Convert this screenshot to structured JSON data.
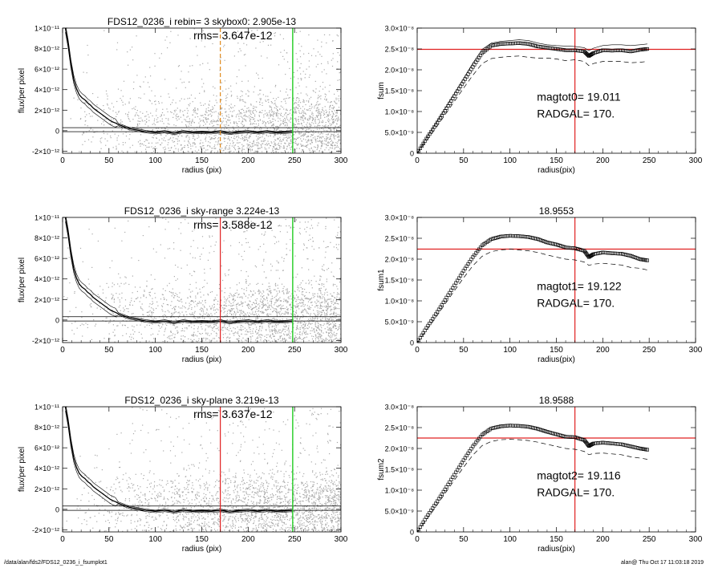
{
  "footer": {
    "path": "/data/alan/fds2/FDS12_0236_i_fsumplot1",
    "stamp": "alan@  Thu Oct 17 11:03:18 2019"
  },
  "colors": {
    "axes": "#000000",
    "scatter": "#a9a9a9",
    "red": "#e02020",
    "green": "#22cc22",
    "orange": "#e08a1e",
    "profile_dark": "#882222"
  },
  "chart_data": [
    {
      "id": "flux-1",
      "type": "scatter",
      "title": "FDS12_0236_i rebin= 3    skybox0:  2.905e-13",
      "rms_text": "rms= 3.647e-12",
      "xlabel": "radius (pix)",
      "ylabel": "flux/per pixel",
      "xlim": [
        0,
        300
      ],
      "ylim": [
        -2.2e-12,
        1e-11
      ],
      "xticks": [
        0,
        50,
        100,
        150,
        200,
        250,
        300
      ],
      "yticks": [
        -2e-12,
        0,
        2e-12,
        4e-12,
        6e-12,
        8e-12,
        1e-11
      ],
      "ytick_labels": [
        "-2×10⁻¹²",
        "0",
        "2×10⁻¹²",
        "4×10⁻¹²",
        "6×10⁻¹²",
        "8×10⁻¹²",
        "1×10⁻¹¹"
      ],
      "vline_x": 170,
      "vline_color": "#e08a1e",
      "vline_dashed": true,
      "green_x": 248,
      "hlines": [
        2.9e-13,
        -1e-13
      ],
      "profile": {
        "x": [
          3,
          6,
          9,
          12,
          15,
          18,
          21,
          24,
          27,
          30,
          33,
          36,
          39,
          42,
          45,
          48,
          51,
          54,
          57,
          60,
          63,
          66,
          69,
          72,
          75,
          78,
          81,
          84,
          90,
          100,
          110,
          120,
          130,
          140,
          150,
          160,
          170,
          180,
          190,
          200,
          210,
          220,
          230,
          240,
          248
        ],
        "y": [
          1e-11,
          8.5e-12,
          6.5e-12,
          5e-12,
          4.1e-12,
          3.5e-12,
          3.2e-12,
          3e-12,
          2.7e-12,
          2.5e-12,
          2.2e-12,
          2e-12,
          1.8e-12,
          1.6e-12,
          1.4e-12,
          1.2e-12,
          1e-12,
          8.5e-13,
          7.5e-13,
          6e-13,
          5e-13,
          4e-13,
          3e-13,
          2e-13,
          1.5e-13,
          1e-13,
          5e-14,
          0,
          -1e-13,
          -2e-13,
          -1e-13,
          -2.5e-13,
          -1e-13,
          -2e-13,
          -1.5e-13,
          -2e-13,
          -1e-13,
          -2.5e-13,
          -1.5e-13,
          -1e-13,
          -2e-13,
          -1e-13,
          -2e-13,
          -1.5e-13,
          -1e-13
        ]
      }
    },
    {
      "id": "fsum-0",
      "type": "scatter",
      "title": "",
      "xlabel": "radius(pix)",
      "ylabel": "fsum",
      "xlim": [
        0,
        300
      ],
      "ylim": [
        0,
        3e-08
      ],
      "xticks": [
        0,
        50,
        100,
        150,
        200,
        250,
        300
      ],
      "yticks": [
        0,
        5e-09,
        1e-08,
        1.5e-08,
        2e-08,
        2.5e-08,
        3e-08
      ],
      "ytick_labels": [
        "0",
        "5.0×10⁻⁹",
        "1.0×10⁻⁸",
        "1.5×10⁻⁸",
        "2.0×10⁻⁸",
        "2.5×10⁻⁸",
        "3.0×10⁻⁸"
      ],
      "hline_y": 2.49e-08,
      "vline_x": 170,
      "annot": [
        "magtot0=  19.011",
        "RADGAL=    170."
      ],
      "x": [
        0,
        10,
        20,
        30,
        40,
        50,
        60,
        70,
        80,
        90,
        100,
        110,
        120,
        130,
        140,
        150,
        160,
        170,
        180,
        185,
        190,
        200,
        210,
        220,
        230,
        240,
        248
      ],
      "y": [
        0,
        3.5e-09,
        6.8e-09,
        1.02e-08,
        1.37e-08,
        1.72e-08,
        2.07e-08,
        2.4e-08,
        2.58e-08,
        2.62e-08,
        2.63e-08,
        2.64e-08,
        2.62e-08,
        2.56e-08,
        2.53e-08,
        2.5e-08,
        2.47e-08,
        2.47e-08,
        2.44e-08,
        2.33e-08,
        2.4e-08,
        2.47e-08,
        2.46e-08,
        2.47e-08,
        2.44e-08,
        2.48e-08,
        2.5e-08
      ],
      "dashed": [
        0,
        3e-09,
        6e-09,
        9.2e-09,
        1.24e-08,
        1.56e-08,
        1.87e-08,
        2.15e-08,
        2.27e-08,
        2.3e-08,
        2.32e-08,
        2.33e-08,
        2.3e-08,
        2.28e-08,
        2.28e-08,
        2.26e-08,
        2.22e-08,
        2.24e-08,
        2.2e-08,
        2.1e-08,
        2.15e-08,
        2.2e-08,
        2.2e-08,
        2.2e-08,
        2.17e-08,
        2.18e-08,
        2.2e-08
      ],
      "upper": [
        0,
        3.7e-09,
        7.1e-09,
        1.07e-08,
        1.43e-08,
        1.79e-08,
        2.16e-08,
        2.49e-08,
        2.64e-08,
        2.68e-08,
        2.7e-08,
        2.72e-08,
        2.7e-08,
        2.64e-08,
        2.6e-08,
        2.58e-08,
        2.57e-08,
        2.56e-08,
        2.53e-08,
        2.46e-08,
        2.52e-08,
        2.58e-08,
        2.6e-08,
        2.6e-08,
        2.58e-08,
        2.6e-08,
        2.62e-08
      ]
    },
    {
      "id": "flux-2",
      "type": "scatter",
      "title": "FDS12_0236_i sky-range  3.224e-13",
      "rms_text": "rms= 3.588e-12",
      "xlabel": "radius (pix)",
      "ylabel": "flux/per pixel",
      "xlim": [
        0,
        300
      ],
      "ylim": [
        -2.2e-12,
        1e-11
      ],
      "xticks": [
        0,
        50,
        100,
        150,
        200,
        250,
        300
      ],
      "yticks": [
        -2e-12,
        0,
        2e-12,
        4e-12,
        6e-12,
        8e-12,
        1e-11
      ],
      "ytick_labels": [
        "-2×10⁻¹²",
        "0",
        "2×10⁻¹²",
        "4×10⁻¹²",
        "6×10⁻¹²",
        "8×10⁻¹²",
        "1×10⁻¹¹"
      ],
      "vline_x": 170,
      "vline_color": "#e02020",
      "vline_dashed": false,
      "green_x": 248,
      "hlines": [
        3.2e-13,
        -1e-13
      ],
      "profile": {
        "x": [
          3,
          6,
          9,
          12,
          15,
          18,
          21,
          24,
          27,
          30,
          33,
          36,
          39,
          42,
          45,
          48,
          51,
          54,
          57,
          60,
          63,
          66,
          69,
          72,
          75,
          78,
          81,
          84,
          90,
          100,
          110,
          120,
          130,
          140,
          150,
          160,
          170,
          180,
          190,
          200,
          210,
          220,
          230,
          240,
          248
        ],
        "y": [
          1e-11,
          8.5e-12,
          6.5e-12,
          5e-12,
          4.1e-12,
          3.5e-12,
          3.2e-12,
          3e-12,
          2.7e-12,
          2.5e-12,
          2.2e-12,
          2e-12,
          1.8e-12,
          1.6e-12,
          1.4e-12,
          1.2e-12,
          1e-12,
          8.5e-13,
          7.5e-13,
          6e-13,
          5e-13,
          4e-13,
          3e-13,
          2e-13,
          1.5e-13,
          1e-13,
          5e-14,
          0,
          -1e-13,
          -2e-13,
          -1e-13,
          -2.5e-13,
          -1e-13,
          -2e-13,
          -1.5e-13,
          -2e-13,
          -1e-13,
          -2.5e-13,
          -1.5e-13,
          -1e-13,
          -2e-13,
          -1e-13,
          -2e-13,
          -1.5e-13,
          -1e-13
        ]
      }
    },
    {
      "id": "fsum-1",
      "type": "scatter",
      "title": "18.9553",
      "xlabel": "radius(pix)",
      "ylabel": "fsum1",
      "xlim": [
        0,
        300
      ],
      "ylim": [
        0,
        3e-08
      ],
      "xticks": [
        0,
        50,
        100,
        150,
        200,
        250,
        300
      ],
      "yticks": [
        0,
        5e-09,
        1e-08,
        1.5e-08,
        2e-08,
        2.5e-08,
        3e-08
      ],
      "ytick_labels": [
        "0",
        "5.0×10⁻⁹",
        "1.0×10⁻⁸",
        "1.5×10⁻⁸",
        "2.0×10⁻⁸",
        "2.5×10⁻⁸",
        "3.0×10⁻⁸"
      ],
      "hline_y": 2.24e-08,
      "vline_x": 170,
      "annot": [
        "magtot1=  19.122",
        "RADGAL=    170."
      ],
      "x": [
        0,
        10,
        20,
        30,
        40,
        50,
        60,
        70,
        80,
        90,
        100,
        110,
        120,
        130,
        140,
        150,
        160,
        170,
        180,
        185,
        190,
        200,
        210,
        220,
        230,
        240,
        248
      ],
      "y": [
        0,
        3.5e-09,
        6.8e-09,
        1.02e-08,
        1.37e-08,
        1.72e-08,
        2.05e-08,
        2.33e-08,
        2.48e-08,
        2.54e-08,
        2.56e-08,
        2.55e-08,
        2.53e-08,
        2.48e-08,
        2.4e-08,
        2.35e-08,
        2.28e-08,
        2.26e-08,
        2.2e-08,
        2.05e-08,
        2.12e-08,
        2.16e-08,
        2.14e-08,
        2.13e-08,
        2.08e-08,
        2e-08,
        1.97e-08
      ],
      "dashed": [
        0,
        3e-09,
        6e-09,
        9.2e-09,
        1.24e-08,
        1.55e-08,
        1.84e-08,
        2.07e-08,
        2.18e-08,
        2.22e-08,
        2.24e-08,
        2.22e-08,
        2.2e-08,
        2.16e-08,
        2.1e-08,
        2.05e-08,
        2e-08,
        1.98e-08,
        1.93e-08,
        1.85e-08,
        1.88e-08,
        1.9e-08,
        1.88e-08,
        1.86e-08,
        1.8e-08,
        1.78e-08,
        1.74e-08
      ],
      "upper": []
    },
    {
      "id": "flux-3",
      "type": "scatter",
      "title": "FDS12_0236_i sky-plane  3.219e-13",
      "rms_text": "rms= 3.637e-12",
      "xlabel": "radius (pix)",
      "ylabel": "flux/per pixel",
      "xlim": [
        0,
        300
      ],
      "ylim": [
        -2.2e-12,
        1e-11
      ],
      "xticks": [
        0,
        50,
        100,
        150,
        200,
        250,
        300
      ],
      "yticks": [
        -2e-12,
        0,
        2e-12,
        4e-12,
        6e-12,
        8e-12,
        1e-11
      ],
      "ytick_labels": [
        "-2×10⁻¹²",
        "0",
        "2×10⁻¹²",
        "4×10⁻¹²",
        "6×10⁻¹²",
        "8×10⁻¹²",
        "1×10⁻¹¹"
      ],
      "vline_x": 170,
      "vline_color": "#e02020",
      "vline_dashed": false,
      "green_x": 248,
      "hlines": [
        3.2e-13,
        -1e-13
      ],
      "profile": {
        "x": [
          3,
          6,
          9,
          12,
          15,
          18,
          21,
          24,
          27,
          30,
          33,
          36,
          39,
          42,
          45,
          48,
          51,
          54,
          57,
          60,
          63,
          66,
          69,
          72,
          75,
          78,
          81,
          84,
          90,
          100,
          110,
          120,
          130,
          140,
          150,
          160,
          170,
          180,
          190,
          200,
          210,
          220,
          230,
          240,
          248
        ],
        "y": [
          1e-11,
          8.5e-12,
          6.5e-12,
          5e-12,
          4.1e-12,
          3.5e-12,
          3.2e-12,
          3e-12,
          2.7e-12,
          2.5e-12,
          2.2e-12,
          2e-12,
          1.8e-12,
          1.6e-12,
          1.4e-12,
          1.2e-12,
          1e-12,
          8.5e-13,
          7.5e-13,
          6e-13,
          5e-13,
          4e-13,
          3e-13,
          2e-13,
          1.5e-13,
          1e-13,
          5e-14,
          0,
          -1e-13,
          -2e-13,
          -1e-13,
          -2.5e-13,
          -1e-13,
          -2e-13,
          -1.5e-13,
          -2e-13,
          -1e-13,
          -2.5e-13,
          -1.5e-13,
          -1e-13,
          -2e-13,
          -1e-13,
          -2e-13,
          -1.5e-13,
          -1e-13
        ]
      }
    },
    {
      "id": "fsum-2",
      "type": "scatter",
      "title": "18.9588",
      "xlabel": "radius(pix)",
      "ylabel": "fsum2",
      "xlim": [
        0,
        300
      ],
      "ylim": [
        0,
        3e-08
      ],
      "xticks": [
        0,
        50,
        100,
        150,
        200,
        250,
        300
      ],
      "yticks": [
        0,
        5e-09,
        1e-08,
        1.5e-08,
        2e-08,
        2.5e-08,
        3e-08
      ],
      "ytick_labels": [
        "0",
        "5.0×10⁻⁹",
        "1.0×10⁻⁸",
        "1.5×10⁻⁸",
        "2.0×10⁻⁸",
        "2.5×10⁻⁸",
        "3.0×10⁻⁸"
      ],
      "hline_y": 2.25e-08,
      "vline_x": 170,
      "annot": [
        "magtot2=  19.116",
        "RADGAL=    170."
      ],
      "x": [
        0,
        10,
        20,
        30,
        40,
        50,
        60,
        70,
        80,
        90,
        100,
        110,
        120,
        130,
        140,
        150,
        160,
        170,
        180,
        185,
        190,
        200,
        210,
        220,
        230,
        240,
        248
      ],
      "y": [
        0,
        3.5e-09,
        6.8e-09,
        1.02e-08,
        1.37e-08,
        1.72e-08,
        2.05e-08,
        2.33e-08,
        2.48e-08,
        2.53e-08,
        2.55e-08,
        2.54e-08,
        2.52e-08,
        2.47e-08,
        2.4e-08,
        2.34e-08,
        2.28e-08,
        2.27e-08,
        2.2e-08,
        2.06e-08,
        2.12e-08,
        2.14e-08,
        2.12e-08,
        2.1e-08,
        2.05e-08,
        2e-08,
        1.97e-08
      ],
      "dashed": [
        0,
        3e-09,
        6e-09,
        9.2e-09,
        1.24e-08,
        1.55e-08,
        1.84e-08,
        2.07e-08,
        2.17e-08,
        2.21e-08,
        2.22e-08,
        2.21e-08,
        2.19e-08,
        2.15e-08,
        2.1e-08,
        2.05e-08,
        2e-08,
        1.98e-08,
        1.93e-08,
        1.85e-08,
        1.88e-08,
        1.89e-08,
        1.87e-08,
        1.85e-08,
        1.8e-08,
        1.77e-08,
        1.74e-08
      ],
      "upper": []
    }
  ]
}
